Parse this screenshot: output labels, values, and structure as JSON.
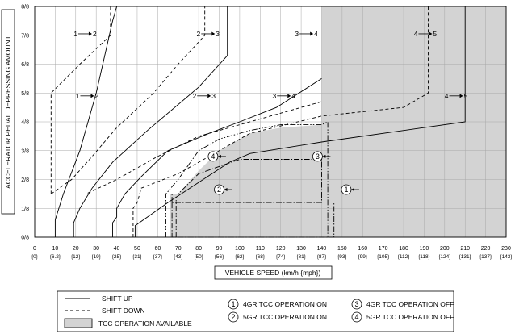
{
  "chart_data": {
    "type": "line",
    "xlabel": "VEHICLE SPEED (km/h {mph})",
    "ylabel": "ACCELERATOR PEDAL DEPRESSING AMOUNT",
    "xlim": [
      0,
      230
    ],
    "ylim": [
      0,
      8
    ],
    "x_ticks": [
      {
        "value": 0,
        "label": "0",
        "sub": "{0}"
      },
      {
        "value": 10,
        "label": "10",
        "sub": "{6.2}"
      },
      {
        "value": 20,
        "label": "20",
        "sub": "{12}"
      },
      {
        "value": 30,
        "label": "30",
        "sub": "{19}"
      },
      {
        "value": 40,
        "label": "40",
        "sub": "{25}"
      },
      {
        "value": 50,
        "label": "50",
        "sub": "{31}"
      },
      {
        "value": 60,
        "label": "60",
        "sub": "{37}"
      },
      {
        "value": 70,
        "label": "70",
        "sub": "{43}"
      },
      {
        "value": 80,
        "label": "80",
        "sub": "{50}"
      },
      {
        "value": 90,
        "label": "90",
        "sub": "{56}"
      },
      {
        "value": 100,
        "label": "100",
        "sub": "{62}"
      },
      {
        "value": 110,
        "label": "110",
        "sub": "{68}"
      },
      {
        "value": 120,
        "label": "120",
        "sub": "{74}"
      },
      {
        "value": 130,
        "label": "130",
        "sub": "{81}"
      },
      {
        "value": 140,
        "label": "140",
        "sub": "{87}"
      },
      {
        "value": 150,
        "label": "150",
        "sub": "{93}"
      },
      {
        "value": 160,
        "label": "160",
        "sub": "{99}"
      },
      {
        "value": 170,
        "label": "170",
        "sub": "{105}"
      },
      {
        "value": 180,
        "label": "180",
        "sub": "{112}"
      },
      {
        "value": 190,
        "label": "190",
        "sub": "{118}"
      },
      {
        "value": 200,
        "label": "200",
        "sub": "{124}"
      },
      {
        "value": 210,
        "label": "210",
        "sub": "{131}"
      },
      {
        "value": 220,
        "label": "220",
        "sub": "{137}"
      },
      {
        "value": 230,
        "label": "230",
        "sub": "{143}"
      }
    ],
    "y_ticks": [
      {
        "value": 0,
        "label": "0/8"
      },
      {
        "value": 1,
        "label": "1/8"
      },
      {
        "value": 2,
        "label": "2/8"
      },
      {
        "value": 3,
        "label": "3/8"
      },
      {
        "value": 4,
        "label": "4/8"
      },
      {
        "value": 5,
        "label": "5/8"
      },
      {
        "value": 6,
        "label": "6/8"
      },
      {
        "value": 7,
        "label": "7/8"
      },
      {
        "value": 8,
        "label": "8/8"
      }
    ],
    "grid": true,
    "series": [
      {
        "style": "shift-up",
        "points": [
          [
            10,
            0
          ],
          [
            10,
            0.6
          ],
          [
            14,
            1.5
          ],
          [
            22,
            3
          ],
          [
            30,
            5
          ],
          [
            38,
            7.5
          ],
          [
            40,
            8
          ]
        ]
      },
      {
        "style": "shift-up",
        "points": [
          [
            19,
            0
          ],
          [
            19,
            0.5
          ],
          [
            22,
            1
          ],
          [
            28,
            1.7
          ],
          [
            38,
            2.6
          ],
          [
            55,
            3.7
          ],
          [
            80,
            5.2
          ],
          [
            94,
            6.3
          ],
          [
            94,
            8
          ]
        ]
      },
      {
        "style": "shift-up",
        "points": [
          [
            38,
            0
          ],
          [
            38,
            0.5
          ],
          [
            40,
            0.7
          ],
          [
            40,
            1
          ],
          [
            44,
            1.5
          ],
          [
            52,
            2.1
          ],
          [
            65,
            3
          ],
          [
            85,
            3.6
          ],
          [
            100,
            4
          ],
          [
            118,
            4.5
          ],
          [
            140,
            5.5
          ]
        ]
      },
      {
        "style": "shift-up",
        "points": [
          [
            49,
            0
          ],
          [
            49,
            0.4
          ],
          [
            55,
            0.7
          ],
          [
            65,
            1.2
          ],
          [
            80,
            1.9
          ],
          [
            95,
            2.6
          ],
          [
            105,
            2.9
          ],
          [
            140,
            3.3
          ],
          [
            210,
            4
          ],
          [
            210,
            8
          ]
        ]
      },
      {
        "style": "shift-down",
        "points": [
          [
            8,
            1.5
          ],
          [
            8,
            5
          ],
          [
            22,
            6
          ],
          [
            37,
            7
          ],
          [
            37,
            8
          ]
        ]
      },
      {
        "style": "shift-down",
        "points": [
          [
            8,
            1.5
          ],
          [
            18,
            2
          ],
          [
            28,
            2.8
          ],
          [
            40,
            3.8
          ],
          [
            58,
            5
          ],
          [
            70,
            6
          ],
          [
            83,
            7
          ],
          [
            83,
            8
          ]
        ]
      },
      {
        "style": "shift-down",
        "points": [
          [
            25,
            0
          ],
          [
            25,
            1.5
          ],
          [
            40,
            2
          ],
          [
            60,
            2.8
          ],
          [
            80,
            3.5
          ],
          [
            105,
            4
          ],
          [
            125,
            4.4
          ],
          [
            140,
            4.7
          ]
        ]
      },
      {
        "style": "shift-down",
        "points": [
          [
            48,
            0
          ],
          [
            48,
            1
          ],
          [
            50,
            1.2
          ],
          [
            52,
            1.7
          ],
          [
            70,
            2.2
          ],
          [
            80,
            2.6
          ],
          [
            105,
            3.6
          ],
          [
            140,
            4.2
          ],
          [
            180,
            4.5
          ],
          [
            192,
            5
          ],
          [
            192,
            8
          ]
        ]
      },
      {
        "style": "tcc-on",
        "points": [
          [
            67,
            1.2
          ],
          [
            67,
            1.5
          ],
          [
            70,
            1.5
          ],
          [
            80,
            2.2
          ],
          [
            100,
            2.7
          ],
          [
            140,
            2.7
          ],
          [
            140,
            1.2
          ],
          [
            67,
            1.2
          ]
        ]
      },
      {
        "style": "tcc-on",
        "points": [
          [
            67,
            1.2
          ],
          [
            67,
            0
          ],
          [
            146,
            0
          ],
          [
            146,
            1.2
          ]
        ]
      },
      {
        "style": "tcc-off",
        "points": [
          [
            64,
            0
          ],
          [
            64,
            1.5
          ],
          [
            70,
            2
          ],
          [
            80,
            3
          ],
          [
            90,
            3.4
          ],
          [
            105,
            3.7
          ],
          [
            120,
            3.9
          ],
          [
            140,
            3.9
          ],
          [
            143,
            4
          ],
          [
            143,
            0
          ]
        ]
      },
      {
        "style": "tcc-off",
        "points": [
          [
            69,
            0
          ],
          [
            69,
            1.4
          ]
        ]
      }
    ],
    "tcc_region": [
      [
        66,
        0
      ],
      [
        66,
        1.5
      ],
      [
        70,
        1.5
      ],
      [
        80,
        2.3
      ],
      [
        90,
        3
      ],
      [
        105,
        3.6
      ],
      [
        120,
        3.8
      ],
      [
        140,
        3.9
      ],
      [
        140,
        8
      ],
      [
        230,
        8
      ],
      [
        230,
        0
      ]
    ],
    "annotations": [
      {
        "text": "1",
        "arrow": "right",
        "next": "2",
        "x": 24,
        "y": 7.05
      },
      {
        "text": "2",
        "arrow": "right",
        "next": "3",
        "x": 84,
        "y": 7.05
      },
      {
        "text": "3",
        "arrow": "right",
        "next": "4",
        "x": 132,
        "y": 7.05
      },
      {
        "text": "4",
        "arrow": "right",
        "next": "5",
        "x": 190,
        "y": 7.05
      },
      {
        "text": "1",
        "arrow": "right",
        "next": "2",
        "x": 25,
        "y": 4.9
      },
      {
        "text": "2",
        "arrow": "right",
        "next": "3",
        "x": 82,
        "y": 4.9
      },
      {
        "text": "3",
        "arrow": "right",
        "next": "4",
        "x": 121,
        "y": 4.9
      },
      {
        "text": "4",
        "arrow": "right",
        "next": "5",
        "x": 205,
        "y": 4.9
      }
    ],
    "markers": [
      {
        "num": "4",
        "x": 87,
        "y": 2.8
      },
      {
        "num": "3",
        "x": 138,
        "y": 2.8
      },
      {
        "num": "2",
        "x": 90,
        "y": 1.65
      },
      {
        "num": "1",
        "x": 152,
        "y": 1.65
      }
    ]
  },
  "legend": {
    "shift_up": "SHIFT UP",
    "shift_down": "SHIFT DOWN",
    "tcc_available": "TCC OPERATION AVAILABLE",
    "item1_num": "1",
    "item1": "4GR TCC OPERATION ON",
    "item2_num": "2",
    "item2": "5GR TCC OPERATION ON",
    "item3_num": "3",
    "item3": "4GR TCC OPERATION OFF",
    "item4_num": "4",
    "item4": "5GR TCC OPERATION OFF"
  },
  "colors": {
    "region": "#d3d3d3",
    "line": "#000000",
    "grid": "#a8a8a8"
  }
}
